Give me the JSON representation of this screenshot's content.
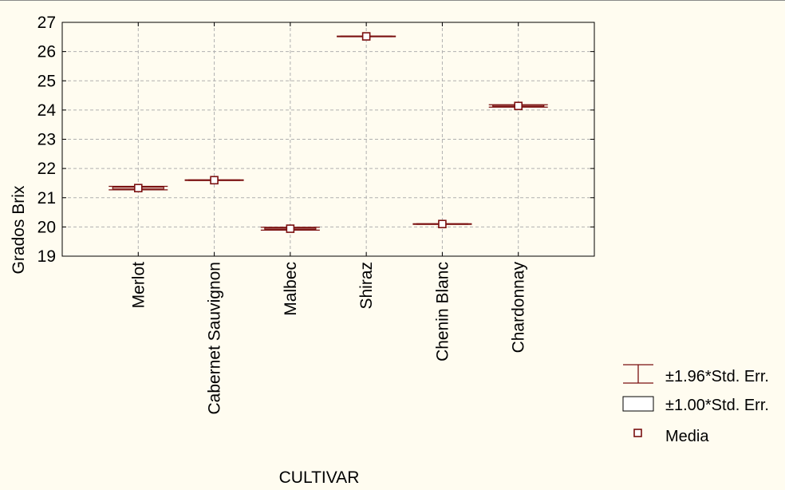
{
  "chart_data": {
    "type": "box",
    "title": "",
    "xlabel": "CULTIVAR",
    "ylabel": "Grados Brix",
    "ylim": [
      19,
      27
    ],
    "yticks": [
      19,
      20,
      21,
      22,
      23,
      24,
      25,
      26,
      27
    ],
    "grid": true,
    "categories": [
      "Merlot",
      "Cabernet Sauvignon",
      "Malbec",
      "Shiraz",
      "Chenin Blanc",
      "Chardonnay"
    ],
    "series": [
      {
        "name": "Media",
        "values": [
          21.33,
          21.6,
          19.94,
          26.52,
          20.1,
          24.14
        ]
      },
      {
        "name": "±1.00*Std. Err.",
        "values": [
          0.03,
          0.01,
          0.02,
          0.01,
          0.01,
          0.02
        ]
      },
      {
        "name": "±1.96*Std. Err.",
        "values": [
          0.06,
          0.01,
          0.05,
          0.01,
          0.01,
          0.04
        ]
      }
    ],
    "legend": {
      "position": "bottom-right",
      "entries": [
        "±1.96*Std. Err.",
        "±1.00*Std. Err.",
        "Media"
      ]
    },
    "colors": {
      "line": "#7a1010",
      "grid": "#b0b0b0",
      "background": "#fffcf0",
      "marker_fill": "#ffffff"
    }
  }
}
